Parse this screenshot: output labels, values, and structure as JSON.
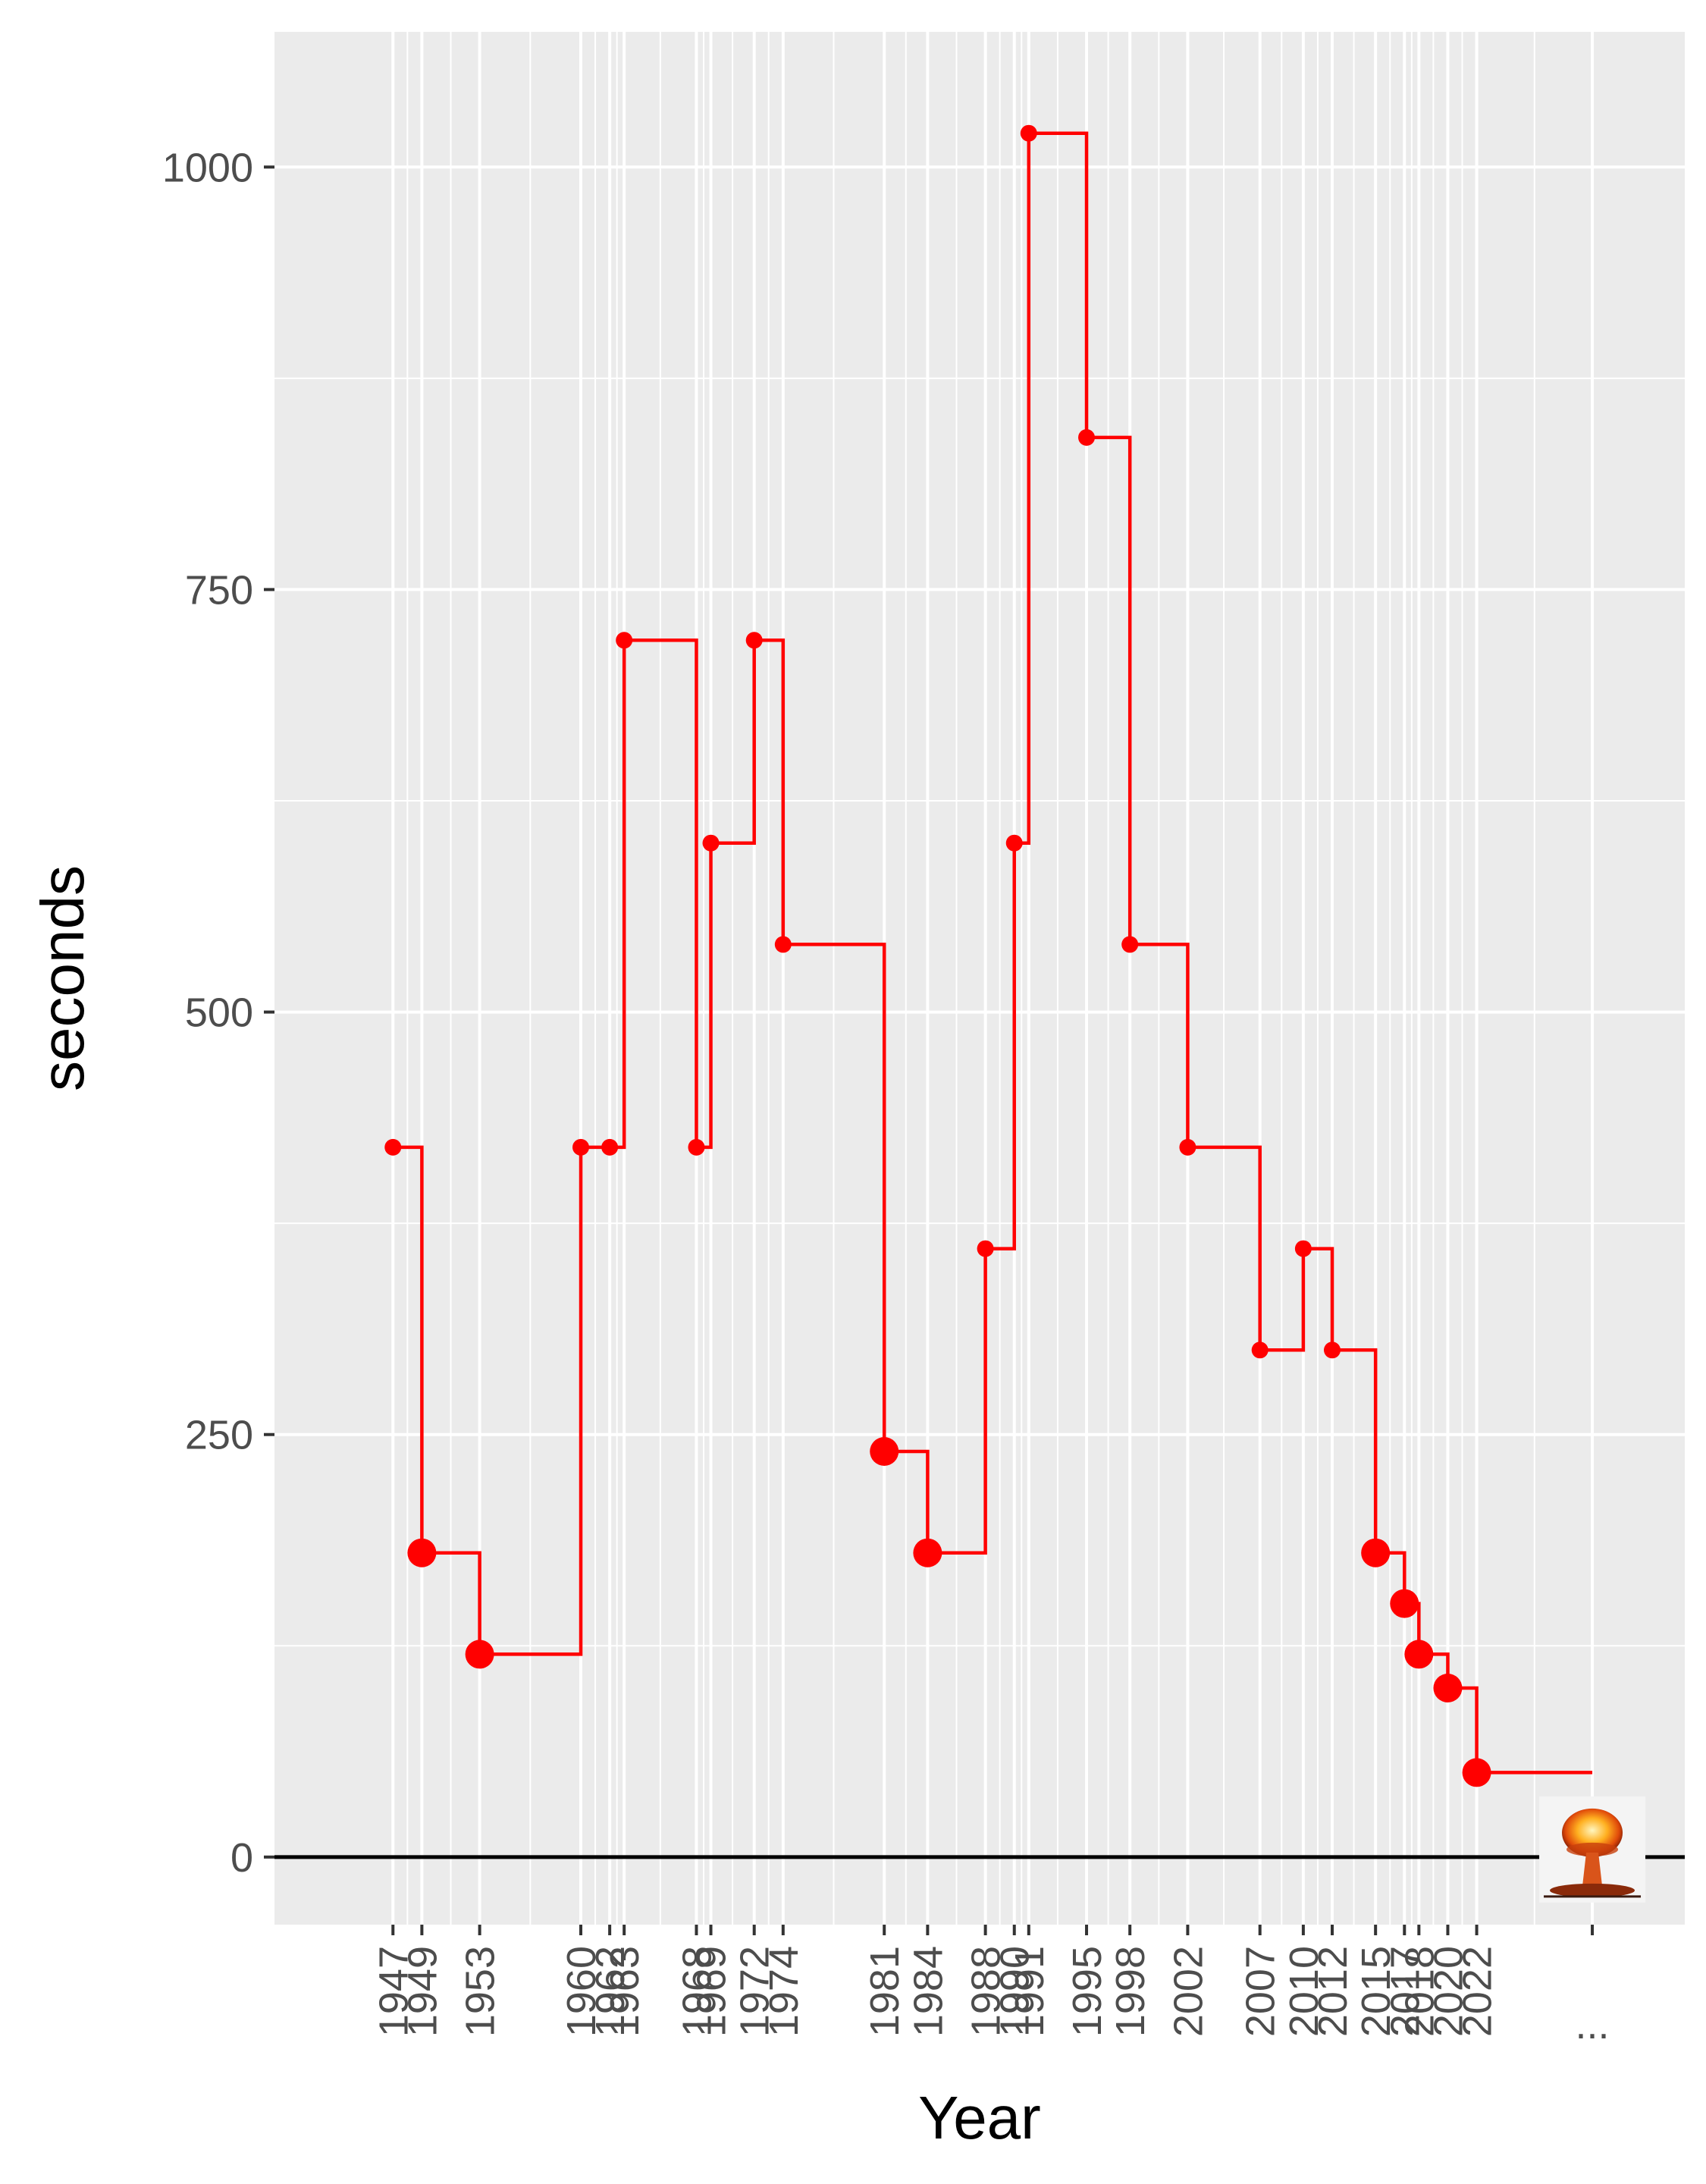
{
  "chart_data": {
    "type": "line",
    "step": "post",
    "title": "",
    "xlabel": "Year",
    "ylabel": "seconds",
    "ylim": [
      -40,
      1080
    ],
    "xlim": [
      1938.8,
      2036.4
    ],
    "yticks": [
      0,
      250,
      500,
      750,
      1000
    ],
    "xticks": [
      1947,
      1949,
      1953,
      1960,
      1962,
      1963,
      1968,
      1969,
      1972,
      1974,
      1981,
      1984,
      1988,
      1990,
      1991,
      1995,
      1998,
      2002,
      2007,
      2010,
      2012,
      2015,
      2017,
      2018,
      2020,
      2022
    ],
    "xtick_labels": [
      "1947",
      "1949",
      "1953",
      "1960",
      "1962",
      "1963",
      "1968",
      "1969",
      "1972",
      "1974",
      "1981",
      "1984",
      "1988",
      "1990",
      "1991",
      "1995",
      "1998",
      "2002",
      "2007",
      "2010",
      "2012",
      "2015",
      "2017",
      "2018",
      "2020",
      "2022",
      "..."
    ],
    "extra_tick": {
      "x": 2030,
      "label": "..."
    },
    "hline": 0,
    "grid": true,
    "colors": {
      "line": "#ff0000",
      "panel": "#ebebeb",
      "grid": "#ffffff",
      "zero": "#000000"
    },
    "end_icon": "mushroom-cloud-icon",
    "series": [
      {
        "x": [
          1947,
          1949,
          1953,
          1960,
          1962,
          1963,
          1968,
          1969,
          1972,
          1974,
          1981,
          1984,
          1988,
          1990,
          1991,
          1995,
          1998,
          2002,
          2007,
          2010,
          2012,
          2015,
          2017,
          2018,
          2020,
          2022,
          2030
        ],
        "y": [
          420,
          180,
          120,
          420,
          420,
          720,
          420,
          600,
          720,
          540,
          240,
          180,
          360,
          600,
          1020,
          840,
          540,
          420,
          300,
          360,
          300,
          180,
          150,
          120,
          100,
          50,
          50
        ],
        "point_size": [
          "small",
          "large",
          "large",
          "small",
          "small",
          "small",
          "small",
          "small",
          "small",
          "small",
          "large",
          "large",
          "small",
          "small",
          "small",
          "small",
          "small",
          "small",
          "small",
          "small",
          "small",
          "large",
          "large",
          "large",
          "large",
          "large"
        ]
      }
    ]
  }
}
